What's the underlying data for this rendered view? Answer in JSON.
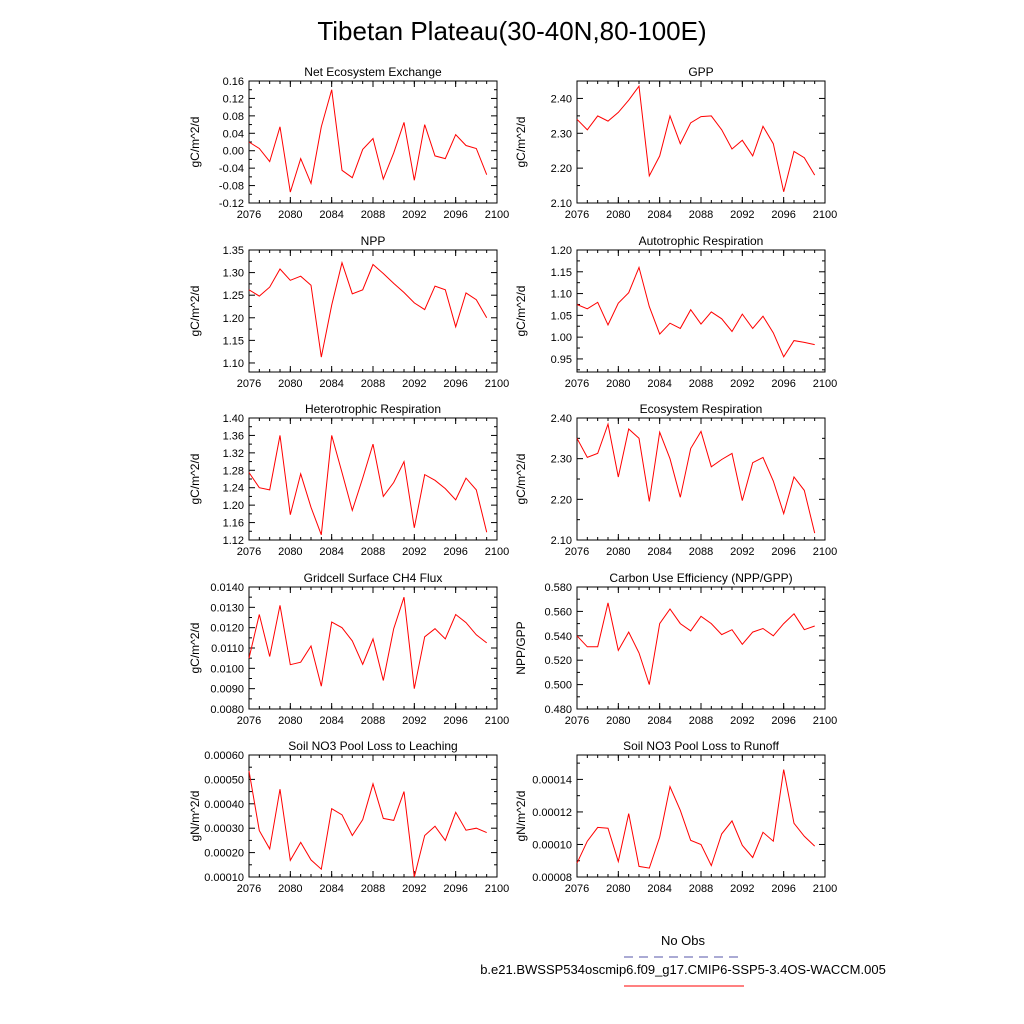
{
  "title": "Tibetan Plateau(30-40N,80-100E)",
  "legend": {
    "obs_label": "No Obs",
    "obs_color": "#5555aa",
    "model_label": "b.e21.BWSSP534oscmip6.f09_g17.CMIP6-SSP5-3.4OS-WACCM.005",
    "model_color": "#ff0000"
  },
  "chart_data": [
    {
      "type": "line",
      "title": "Net Ecosystem Exchange",
      "ylabel": "gC/m^2/d",
      "xlim": [
        2076,
        2100
      ],
      "ylim": [
        -0.12,
        0.16
      ],
      "xticks": [
        "2076",
        "2080",
        "2084",
        "2088",
        "2092",
        "2096",
        "2100"
      ],
      "yticks": [
        "-0.12",
        "-0.08",
        "-0.04",
        "0.00",
        "0.04",
        "0.08",
        "0.12",
        "0.16"
      ],
      "x": [
        2076,
        2077,
        2078,
        2079,
        2080,
        2081,
        2082,
        2083,
        2084,
        2085,
        2086,
        2087,
        2088,
        2089,
        2090,
        2091,
        2092,
        2093,
        2094,
        2095,
        2096,
        2097,
        2098,
        2099
      ],
      "values": [
        0.02,
        0.005,
        -0.025,
        0.055,
        -0.095,
        -0.018,
        -0.075,
        0.055,
        0.14,
        -0.045,
        -0.062,
        0.003,
        0.028,
        -0.065,
        -0.005,
        0.065,
        -0.068,
        0.06,
        -0.012,
        -0.018,
        0.037,
        0.012,
        0.005,
        -0.055
      ]
    },
    {
      "type": "line",
      "title": "GPP",
      "ylabel": "gC/m^2/d",
      "xlim": [
        2076,
        2100
      ],
      "ylim": [
        2.1,
        2.45
      ],
      "xticks": [
        "2076",
        "2080",
        "2084",
        "2088",
        "2092",
        "2096",
        "2100"
      ],
      "yticks": [
        "2.10",
        "2.20",
        "2.30",
        "2.40"
      ],
      "x": [
        2076,
        2077,
        2078,
        2079,
        2080,
        2081,
        2082,
        2083,
        2084,
        2085,
        2086,
        2087,
        2088,
        2089,
        2090,
        2091,
        2092,
        2093,
        2094,
        2095,
        2096,
        2097,
        2098,
        2099
      ],
      "values": [
        2.34,
        2.31,
        2.35,
        2.335,
        2.36,
        2.395,
        2.435,
        2.178,
        2.235,
        2.35,
        2.27,
        2.33,
        2.348,
        2.35,
        2.31,
        2.255,
        2.28,
        2.235,
        2.32,
        2.27,
        2.132,
        2.248,
        2.23,
        2.18
      ]
    },
    {
      "type": "line",
      "title": "NPP",
      "ylabel": "gC/m^2/d",
      "xlim": [
        2076,
        2100
      ],
      "ylim": [
        1.08,
        1.35
      ],
      "xticks": [
        "2076",
        "2080",
        "2084",
        "2088",
        "2092",
        "2096",
        "2100"
      ],
      "yticks": [
        "1.10",
        "1.15",
        "1.20",
        "1.25",
        "1.30",
        "1.35"
      ],
      "x": [
        2076,
        2077,
        2078,
        2079,
        2080,
        2081,
        2082,
        2083,
        2084,
        2085,
        2086,
        2087,
        2088,
        2089,
        2090,
        2091,
        2092,
        2093,
        2094,
        2095,
        2096,
        2097,
        2098,
        2099
      ],
      "values": [
        1.262,
        1.248,
        1.268,
        1.308,
        1.283,
        1.292,
        1.272,
        1.113,
        1.228,
        1.322,
        1.253,
        1.262,
        1.318,
        1.298,
        1.276,
        1.256,
        1.233,
        1.218,
        1.27,
        1.262,
        1.18,
        1.255,
        1.24,
        1.2
      ]
    },
    {
      "type": "line",
      "title": "Autotrophic Respiration",
      "ylabel": "gC/m^2/d",
      "xlim": [
        2076,
        2100
      ],
      "ylim": [
        0.92,
        1.2
      ],
      "xticks": [
        "2076",
        "2080",
        "2084",
        "2088",
        "2092",
        "2096",
        "2100"
      ],
      "yticks": [
        "0.95",
        "1.00",
        "1.05",
        "1.10",
        "1.15",
        "1.20"
      ],
      "x": [
        2076,
        2077,
        2078,
        2079,
        2080,
        2081,
        2082,
        2083,
        2084,
        2085,
        2086,
        2087,
        2088,
        2089,
        2090,
        2091,
        2092,
        2093,
        2094,
        2095,
        2096,
        2097,
        2098,
        2099
      ],
      "values": [
        1.075,
        1.065,
        1.08,
        1.028,
        1.078,
        1.102,
        1.16,
        1.07,
        1.007,
        1.032,
        1.02,
        1.063,
        1.03,
        1.058,
        1.042,
        1.013,
        1.053,
        1.02,
        1.048,
        1.01,
        0.955,
        0.992,
        0.988,
        0.983
      ]
    },
    {
      "type": "line",
      "title": "Heterotrophic Respiration",
      "ylabel": "gC/m^2/d",
      "xlim": [
        2076,
        2100
      ],
      "ylim": [
        1.12,
        1.4
      ],
      "xticks": [
        "2076",
        "2080",
        "2084",
        "2088",
        "2092",
        "2096",
        "2100"
      ],
      "yticks": [
        "1.12",
        "1.16",
        "1.20",
        "1.24",
        "1.28",
        "1.32",
        "1.36",
        "1.40"
      ],
      "x": [
        2076,
        2077,
        2078,
        2079,
        2080,
        2081,
        2082,
        2083,
        2084,
        2085,
        2086,
        2087,
        2088,
        2089,
        2090,
        2091,
        2092,
        2093,
        2094,
        2095,
        2096,
        2097,
        2098,
        2099
      ],
      "values": [
        1.275,
        1.24,
        1.235,
        1.36,
        1.178,
        1.272,
        1.195,
        1.132,
        1.36,
        1.275,
        1.188,
        1.262,
        1.34,
        1.22,
        1.252,
        1.3,
        1.148,
        1.27,
        1.257,
        1.238,
        1.212,
        1.262,
        1.235,
        1.138
      ]
    },
    {
      "type": "line",
      "title": "Ecosystem Respiration",
      "ylabel": "gC/m^2/d",
      "xlim": [
        2076,
        2100
      ],
      "ylim": [
        2.1,
        2.4
      ],
      "xticks": [
        "2076",
        "2080",
        "2084",
        "2088",
        "2092",
        "2096",
        "2100"
      ],
      "yticks": [
        "2.10",
        "2.20",
        "2.30",
        "2.40"
      ],
      "x": [
        2076,
        2077,
        2078,
        2079,
        2080,
        2081,
        2082,
        2083,
        2084,
        2085,
        2086,
        2087,
        2088,
        2089,
        2090,
        2091,
        2092,
        2093,
        2094,
        2095,
        2096,
        2097,
        2098,
        2099
      ],
      "values": [
        2.35,
        2.303,
        2.313,
        2.385,
        2.255,
        2.373,
        2.35,
        2.195,
        2.365,
        2.3,
        2.205,
        2.325,
        2.367,
        2.28,
        2.298,
        2.313,
        2.197,
        2.29,
        2.303,
        2.245,
        2.165,
        2.255,
        2.222,
        2.117
      ]
    },
    {
      "type": "line",
      "title": "Gridcell Surface CH4 Flux",
      "ylabel": "gC/m^2/d",
      "xlim": [
        2076,
        2100
      ],
      "ylim": [
        0.008,
        0.014
      ],
      "xticks": [
        "2076",
        "2080",
        "2084",
        "2088",
        "2092",
        "2096",
        "2100"
      ],
      "yticks": [
        "0.0080",
        "0.0090",
        "0.0100",
        "0.0110",
        "0.0120",
        "0.0130",
        "0.0140"
      ],
      "x": [
        2076,
        2077,
        2078,
        2079,
        2080,
        2081,
        2082,
        2083,
        2084,
        2085,
        2086,
        2087,
        2088,
        2089,
        2090,
        2091,
        2092,
        2093,
        2094,
        2095,
        2096,
        2097,
        2098,
        2099
      ],
      "values": [
        0.0105,
        0.01265,
        0.01058,
        0.0131,
        0.01018,
        0.0103,
        0.0111,
        0.00912,
        0.01228,
        0.012,
        0.01135,
        0.0102,
        0.01145,
        0.0094,
        0.01195,
        0.0135,
        0.009,
        0.01155,
        0.01195,
        0.01145,
        0.01265,
        0.01225,
        0.01165,
        0.01125
      ]
    },
    {
      "type": "line",
      "title": "Carbon Use Efficiency (NPP/GPP)",
      "ylabel": "NPP/GPP",
      "xlim": [
        2076,
        2100
      ],
      "ylim": [
        0.48,
        0.58
      ],
      "xticks": [
        "2076",
        "2080",
        "2084",
        "2088",
        "2092",
        "2096",
        "2100"
      ],
      "yticks": [
        "0.480",
        "0.500",
        "0.520",
        "0.540",
        "0.560",
        "0.580"
      ],
      "x": [
        2076,
        2077,
        2078,
        2079,
        2080,
        2081,
        2082,
        2083,
        2084,
        2085,
        2086,
        2087,
        2088,
        2089,
        2090,
        2091,
        2092,
        2093,
        2094,
        2095,
        2096,
        2097,
        2098,
        2099
      ],
      "values": [
        0.54,
        0.531,
        0.531,
        0.567,
        0.528,
        0.543,
        0.526,
        0.5,
        0.55,
        0.562,
        0.55,
        0.544,
        0.556,
        0.55,
        0.541,
        0.545,
        0.533,
        0.543,
        0.546,
        0.54,
        0.55,
        0.558,
        0.545,
        0.548
      ]
    },
    {
      "type": "line",
      "title": "Soil NO3 Pool Loss to Leaching",
      "ylabel": "gN/m^2/d",
      "xlim": [
        2076,
        2100
      ],
      "ylim": [
        0.0001,
        0.0006
      ],
      "xticks": [
        "2076",
        "2080",
        "2084",
        "2088",
        "2092",
        "2096",
        "2100"
      ],
      "yticks": [
        "0.00010",
        "0.00020",
        "0.00030",
        "0.00040",
        "0.00050",
        "0.00060"
      ],
      "x": [
        2076,
        2077,
        2078,
        2079,
        2080,
        2081,
        2082,
        2083,
        2084,
        2085,
        2086,
        2087,
        2088,
        2089,
        2090,
        2091,
        2092,
        2093,
        2094,
        2095,
        2096,
        2097,
        2098,
        2099
      ],
      "values": [
        0.000535,
        0.00029,
        0.000215,
        0.00046,
        0.000168,
        0.000242,
        0.00017,
        0.000132,
        0.00038,
        0.000355,
        0.00027,
        0.000335,
        0.000482,
        0.00034,
        0.000332,
        0.00045,
        0.0001,
        0.00027,
        0.000308,
        0.00025,
        0.000365,
        0.000292,
        0.0003,
        0.000282
      ]
    },
    {
      "type": "line",
      "title": "Soil NO3 Pool Loss to Runoff",
      "ylabel": "gN/m^2/d",
      "xlim": [
        2076,
        2100
      ],
      "ylim": [
        8e-05,
        0.000155
      ],
      "xticks": [
        "2076",
        "2080",
        "2084",
        "2088",
        "2092",
        "2096",
        "2100"
      ],
      "yticks": [
        "0.00008",
        "0.00010",
        "0.00012",
        "0.00014"
      ],
      "x": [
        2076,
        2077,
        2078,
        2079,
        2080,
        2081,
        2082,
        2083,
        2084,
        2085,
        2086,
        2087,
        2088,
        2089,
        2090,
        2091,
        2092,
        2093,
        2094,
        2095,
        2096,
        2097,
        2098,
        2099
      ],
      "values": [
        8.85e-05,
        0.000102,
        0.0001105,
        0.00011,
        8.95e-05,
        0.000119,
        8.65e-05,
        8.55e-05,
        0.0001045,
        0.0001355,
        0.000121,
        0.0001025,
        0.0001,
        8.7e-05,
        0.0001065,
        0.0001145,
        9.95e-05,
        9.2e-05,
        0.0001075,
        0.000102,
        0.000146,
        0.000113,
        0.000105,
        9.9e-05
      ]
    }
  ]
}
